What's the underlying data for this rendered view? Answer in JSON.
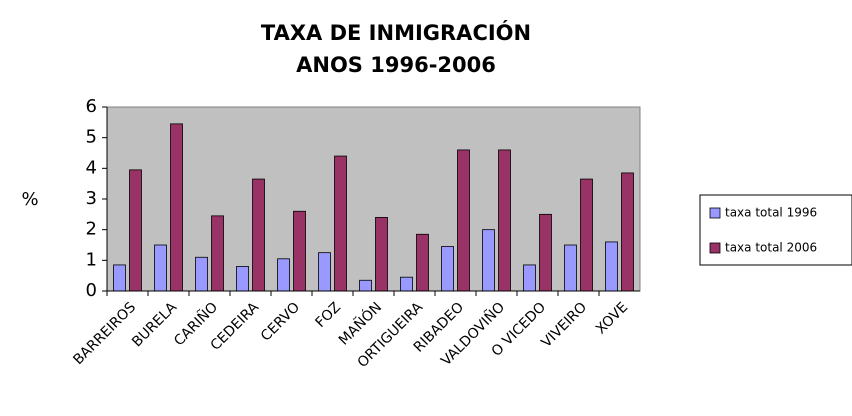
{
  "chart_data": {
    "type": "bar",
    "title": "TAXA DE INMIGRACIÓN",
    "subtitle": "ANOS 1996-2006",
    "y_label": "%",
    "categories": [
      "BARREIROS",
      "BURELA",
      "CARIÑO",
      "CEDEIRA",
      "CERVO",
      "FOZ",
      "MAÑÓN",
      "ORTIGUEIRA",
      "RIBADEO",
      "VALDOVIÑO",
      "O VICEDO",
      "VIVEIRO",
      "XOVE"
    ],
    "series": [
      {
        "name": "taxa total 1996",
        "color": "#9999ff",
        "values": [
          0.85,
          1.5,
          1.1,
          0.8,
          1.05,
          1.25,
          0.35,
          0.45,
          1.45,
          2.0,
          0.85,
          1.5,
          1.6
        ]
      },
      {
        "name": "taxa total 2006",
        "color": "#993366",
        "values": [
          3.95,
          5.45,
          2.45,
          3.65,
          2.6,
          4.4,
          2.4,
          1.85,
          4.6,
          4.6,
          2.5,
          3.65,
          3.85
        ]
      }
    ],
    "ylim": [
      0,
      6
    ],
    "yticks": [
      0,
      1,
      2,
      3,
      4,
      5,
      6
    ],
    "legend": "right"
  }
}
